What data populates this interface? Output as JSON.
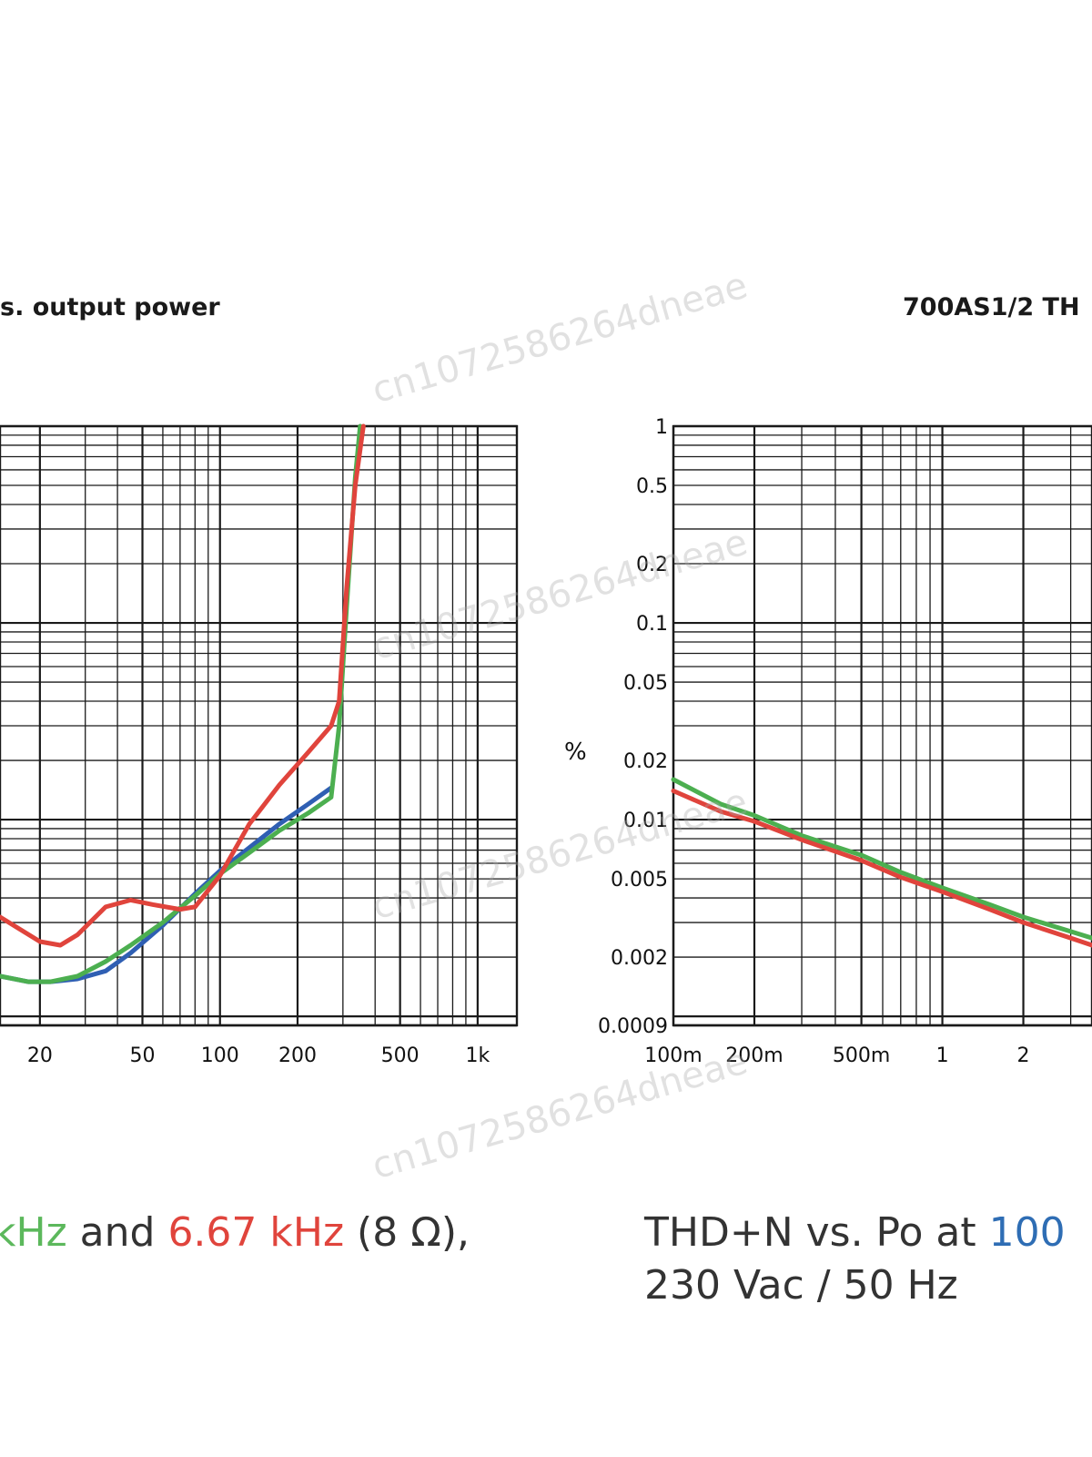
{
  "titles": {
    "left": "s. output power",
    "right": "700AS1/2 TH"
  },
  "captions": {
    "left": [
      {
        "text": "kHz",
        "color": "#5cb85c"
      },
      {
        "text": " and ",
        "color": "#333333"
      },
      {
        "text": "6.67 kHz",
        "color": "#e0443c"
      },
      {
        "text": " (8 Ω),",
        "color": "#333333"
      }
    ],
    "right_line1": [
      {
        "text": "THD+N vs. Po at ",
        "color": "#333333"
      },
      {
        "text": "100",
        "color": "#2e6db4"
      }
    ],
    "right_line2": "230 Vac / 50 Hz"
  },
  "watermark": "cn1072586264dneae",
  "chart_data": [
    {
      "type": "line",
      "title": "s. output power",
      "xscale": "log",
      "yscale": "log",
      "xlim": [
        14,
        1420
      ],
      "ylim": [
        0.0009,
        1
      ],
      "x_tick_labels": [
        {
          "value": 20,
          "label": "20"
        },
        {
          "value": 50,
          "label": "50"
        },
        {
          "value": 100,
          "label": "100"
        },
        {
          "value": 200,
          "label": "200"
        },
        {
          "value": 500,
          "label": "500"
        },
        {
          "value": 1000,
          "label": "1k"
        }
      ],
      "series": [
        {
          "name": "blue",
          "color": "#2f5fb3",
          "points": [
            [
              14,
              0.0016
            ],
            [
              18,
              0.0015
            ],
            [
              22,
              0.0015
            ],
            [
              28,
              0.00155
            ],
            [
              36,
              0.0017
            ],
            [
              45,
              0.0021
            ],
            [
              60,
              0.0029
            ],
            [
              80,
              0.0042
            ],
            [
              100,
              0.0055
            ],
            [
              130,
              0.0072
            ],
            [
              170,
              0.0095
            ],
            [
              220,
              0.012
            ],
            [
              270,
              0.0145
            ]
          ]
        },
        {
          "name": "green",
          "color": "#4caf50",
          "points": [
            [
              14,
              0.0016
            ],
            [
              18,
              0.0015
            ],
            [
              22,
              0.0015
            ],
            [
              28,
              0.0016
            ],
            [
              36,
              0.0019
            ],
            [
              45,
              0.0023
            ],
            [
              60,
              0.003
            ],
            [
              80,
              0.0041
            ],
            [
              100,
              0.0053
            ],
            [
              130,
              0.0068
            ],
            [
              170,
              0.0088
            ],
            [
              220,
              0.0108
            ],
            [
              270,
              0.013
            ],
            [
              290,
              0.03
            ],
            [
              310,
              0.12
            ],
            [
              335,
              0.55
            ],
            [
              350,
              1
            ]
          ]
        },
        {
          "name": "red",
          "color": "#e0443c",
          "points": [
            [
              14,
              0.0032
            ],
            [
              20,
              0.0024
            ],
            [
              24,
              0.0023
            ],
            [
              28,
              0.0026
            ],
            [
              36,
              0.0036
            ],
            [
              45,
              0.0039
            ],
            [
              55,
              0.0037
            ],
            [
              70,
              0.0035
            ],
            [
              80,
              0.0036
            ],
            [
              100,
              0.0052
            ],
            [
              130,
              0.0095
            ],
            [
              170,
              0.015
            ],
            [
              220,
              0.022
            ],
            [
              270,
              0.03
            ],
            [
              290,
              0.04
            ],
            [
              310,
              0.15
            ],
            [
              335,
              0.5
            ],
            [
              360,
              1
            ]
          ]
        }
      ]
    },
    {
      "type": "line",
      "title": "700AS1/2 TH",
      "ylabel": "%",
      "xscale": "log",
      "yscale": "log",
      "xlim": [
        0.1,
        3.6
      ],
      "ylim": [
        0.0009,
        1
      ],
      "x_tick_labels": [
        {
          "value": 0.1,
          "label": "100m"
        },
        {
          "value": 0.2,
          "label": "200m"
        },
        {
          "value": 0.5,
          "label": "500m"
        },
        {
          "value": 1,
          "label": "1"
        },
        {
          "value": 2,
          "label": "2"
        }
      ],
      "y_tick_labels": [
        {
          "value": 1,
          "label": "1"
        },
        {
          "value": 0.5,
          "label": "0.5"
        },
        {
          "value": 0.2,
          "label": "0.2"
        },
        {
          "value": 0.1,
          "label": "0.1"
        },
        {
          "value": 0.05,
          "label": "0.05"
        },
        {
          "value": 0.02,
          "label": "0.02"
        },
        {
          "value": 0.01,
          "label": "0.01"
        },
        {
          "value": 0.005,
          "label": "0.005"
        },
        {
          "value": 0.002,
          "label": "0.002"
        },
        {
          "value": 0.0009,
          "label": "0.0009"
        }
      ],
      "series": [
        {
          "name": "green",
          "color": "#4caf50",
          "points": [
            [
              0.1,
              0.016
            ],
            [
              0.15,
              0.012
            ],
            [
              0.2,
              0.0105
            ],
            [
              0.3,
              0.0083
            ],
            [
              0.5,
              0.0066
            ],
            [
              0.7,
              0.0054
            ],
            [
              1,
              0.0045
            ],
            [
              1.5,
              0.0037
            ],
            [
              2,
              0.0032
            ],
            [
              3,
              0.0027
            ],
            [
              3.6,
              0.0025
            ]
          ]
        },
        {
          "name": "red",
          "color": "#e0443c",
          "points": [
            [
              0.1,
              0.014
            ],
            [
              0.15,
              0.011
            ],
            [
              0.2,
              0.0098
            ],
            [
              0.3,
              0.0079
            ],
            [
              0.5,
              0.0062
            ],
            [
              0.7,
              0.0051
            ],
            [
              1,
              0.0043
            ],
            [
              1.5,
              0.0035
            ],
            [
              2,
              0.003
            ],
            [
              3,
              0.0025
            ],
            [
              3.6,
              0.0023
            ]
          ]
        }
      ]
    }
  ]
}
